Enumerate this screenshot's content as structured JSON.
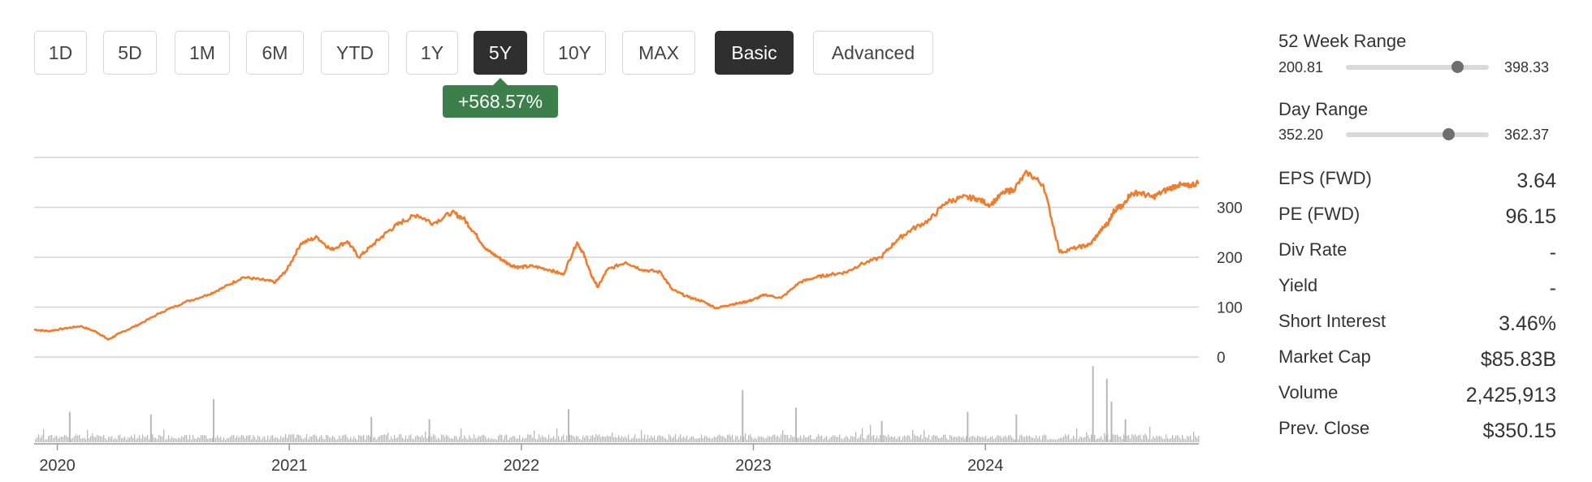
{
  "range_buttons": [
    {
      "label": "1D",
      "active": false
    },
    {
      "label": "5D",
      "active": false
    },
    {
      "label": "1M",
      "active": false
    },
    {
      "label": "6M",
      "active": false
    },
    {
      "label": "YTD",
      "active": false
    },
    {
      "label": "1Y",
      "active": false
    },
    {
      "label": "5Y",
      "active": true
    },
    {
      "label": "10Y",
      "active": false
    },
    {
      "label": "MAX",
      "active": false
    }
  ],
  "mode_buttons": [
    {
      "label": "Basic",
      "active": true
    },
    {
      "label": "Advanced",
      "active": false
    }
  ],
  "change_badge": "+568.57%",
  "colors": {
    "line": "#ef7d2d",
    "volume": "#b8b8b8",
    "badge": "#3c7f4a",
    "active_button": "#2f2f2f",
    "grid": "#d4d4d4"
  },
  "chart_data": {
    "type": "line",
    "ylim": [
      0,
      400
    ],
    "yticks": [
      "300",
      "200",
      "100",
      "0"
    ],
    "ytick_values": [
      300,
      200,
      100,
      0
    ],
    "xticks": [
      "2020",
      "2021",
      "2022",
      "2023",
      "2024"
    ],
    "xtick_values": [
      2020.0,
      2021.0,
      2022.0,
      2023.0,
      2024.0
    ],
    "xlim": [
      2019.9,
      2024.92
    ],
    "grid": true,
    "series": [
      {
        "x": [
          2019.9,
          2019.96,
          2020.03,
          2020.1,
          2020.17,
          2020.22,
          2020.27,
          2020.35,
          2020.45,
          2020.55,
          2020.65,
          2020.72,
          2020.8,
          2020.88,
          2020.94,
          2020.99,
          2021.05,
          2021.12,
          2021.18,
          2021.25,
          2021.3,
          2021.36,
          2021.42,
          2021.48,
          2021.55,
          2021.62,
          2021.7,
          2021.75,
          2021.8,
          2021.85,
          2021.9,
          2021.95,
          2021.99,
          2022.05,
          2022.12,
          2022.18,
          2022.24,
          2022.27,
          2022.3,
          2022.33,
          2022.37,
          2022.45,
          2022.52,
          2022.6,
          2022.65,
          2022.72,
          2022.78,
          2022.84,
          2022.9,
          2022.96,
          2023.0,
          2023.05,
          2023.12,
          2023.2,
          2023.27,
          2023.33,
          2023.4,
          2023.46,
          2023.55,
          2023.62,
          2023.68,
          2023.76,
          2023.83,
          2023.9,
          2023.96,
          2024.02,
          2024.08,
          2024.12,
          2024.18,
          2024.25,
          2024.32,
          2024.4,
          2024.45,
          2024.5,
          2024.53,
          2024.55,
          2024.57,
          2024.59,
          2024.62,
          2024.66,
          2024.72,
          2024.78,
          2024.83,
          2024.87,
          2024.92
        ],
        "y": [
          55,
          52,
          57,
          62,
          50,
          35,
          48,
          65,
          90,
          110,
          125,
          140,
          160,
          155,
          150,
          175,
          228,
          240,
          215,
          232,
          200,
          225,
          250,
          270,
          285,
          268,
          290,
          278,
          248,
          215,
          200,
          185,
          180,
          182,
          175,
          165,
          230,
          205,
          165,
          140,
          175,
          190,
          175,
          170,
          135,
          120,
          112,
          98,
          105,
          110,
          115,
          125,
          118,
          150,
          160,
          165,
          170,
          185,
          200,
          235,
          255,
          275,
          310,
          320,
          318,
          305,
          330,
          335,
          370,
          345,
          210,
          220,
          225,
          255,
          270,
          290,
          300,
          300,
          325,
          330,
          320,
          335,
          345,
          342,
          350
        ],
        "values_note": ""
      }
    ],
    "volume_scale_max": 160,
    "volume_spikes": [
      {
        "x": 2020.05,
        "v": 60
      },
      {
        "x": 2020.4,
        "v": 55
      },
      {
        "x": 2020.67,
        "v": 85
      },
      {
        "x": 2021.35,
        "v": 50
      },
      {
        "x": 2021.6,
        "v": 45
      },
      {
        "x": 2022.2,
        "v": 65
      },
      {
        "x": 2022.95,
        "v": 103
      },
      {
        "x": 2023.18,
        "v": 68
      },
      {
        "x": 2023.55,
        "v": 42
      },
      {
        "x": 2023.92,
        "v": 60
      },
      {
        "x": 2024.13,
        "v": 55
      },
      {
        "x": 2024.46,
        "v": 150
      },
      {
        "x": 2024.52,
        "v": 125
      },
      {
        "x": 2024.54,
        "v": 80
      },
      {
        "x": 2024.6,
        "v": 45
      }
    ]
  },
  "ranges": [
    {
      "title": "52 Week Range",
      "low": "200.81",
      "high": "398.33",
      "position": 0.78
    },
    {
      "title": "Day Range",
      "low": "352.20",
      "high": "362.37",
      "position": 0.72
    }
  ],
  "stats": [
    {
      "label": "EPS (FWD)",
      "value": "3.64"
    },
    {
      "label": "PE (FWD)",
      "value": "96.15"
    },
    {
      "label": "Div Rate",
      "value": "-"
    },
    {
      "label": "Yield",
      "value": "-"
    },
    {
      "label": "Short Interest",
      "value": "3.46%"
    },
    {
      "label": "Market Cap",
      "value": "$85.83B"
    },
    {
      "label": "Volume",
      "value": "2,425,913"
    },
    {
      "label": "Prev. Close",
      "value": "$350.15"
    }
  ]
}
